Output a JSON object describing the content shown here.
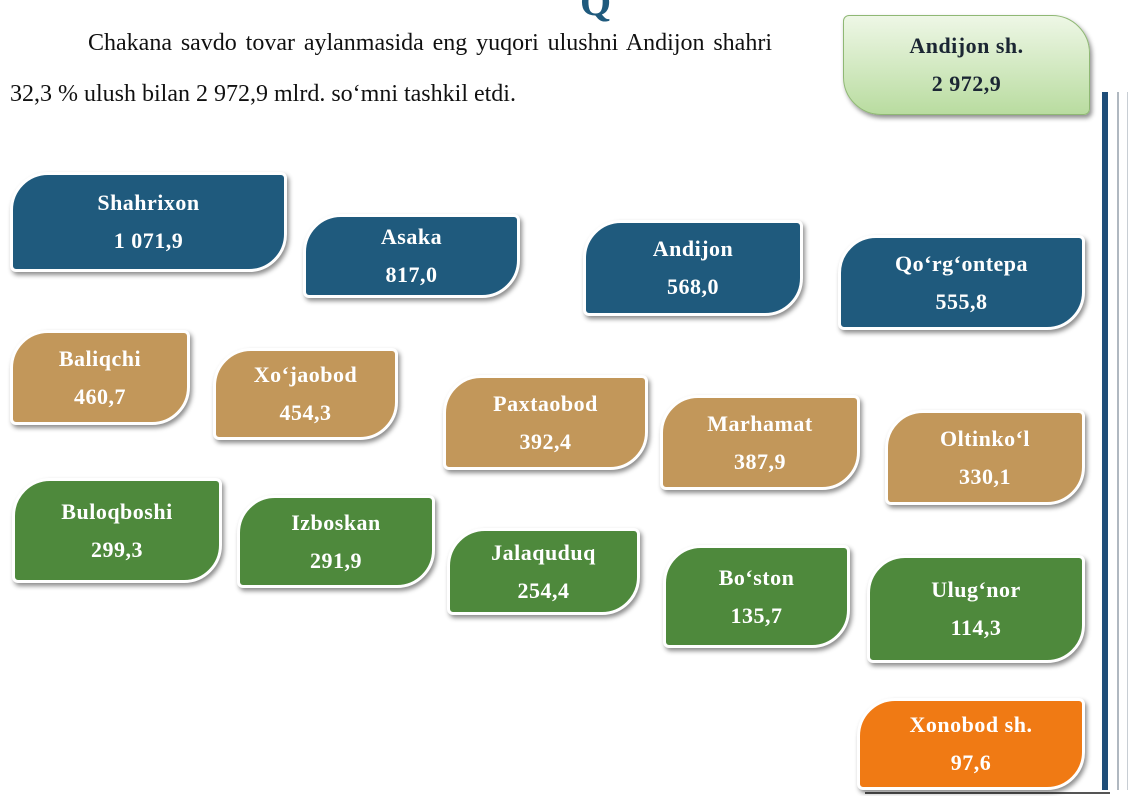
{
  "header": {
    "partial_title": "Q"
  },
  "paragraph": "Chakana savdo tovar aylanmasida eng yuqori ulushni Andijon shahri 32,3 % ulush bilan 2 972,9 mlrd. so‘mni tashkil etdi.",
  "leader": {
    "name": "Andijon sh.",
    "value": "2 972,9"
  },
  "boxes": [
    {
      "name": "Shahrixon",
      "value": "1 071,9",
      "color": "#1f5a7d"
    },
    {
      "name": "Asaka",
      "value": "817,0",
      "color": "#1f5a7d"
    },
    {
      "name": "Andijon",
      "value": "568,0",
      "color": "#1f5a7d"
    },
    {
      "name": "Qo‘rg‘ontepa",
      "value": "555,8",
      "color": "#1f5a7d"
    },
    {
      "name": "Baliqchi",
      "value": "460,7",
      "color": "#c2975a"
    },
    {
      "name": "Xo‘jaobod",
      "value": "454,3",
      "color": "#c2975a"
    },
    {
      "name": "Paxtaobod",
      "value": "392,4",
      "color": "#c2975a"
    },
    {
      "name": "Marhamat",
      "value": "387,9",
      "color": "#c2975a"
    },
    {
      "name": "Oltinko‘l",
      "value": "330,1",
      "color": "#c2975a"
    },
    {
      "name": "Buloqboshi",
      "value": "299,3",
      "color": "#4e893c"
    },
    {
      "name": "Izboskan",
      "value": "291,9",
      "color": "#4e893c"
    },
    {
      "name": "Jalaquduq",
      "value": "254,4",
      "color": "#4e893c"
    },
    {
      "name": "Bo‘ston",
      "value": "135,7",
      "color": "#4e893c"
    },
    {
      "name": "Ulug‘nor",
      "value": "114,3",
      "color": "#4e893c"
    },
    {
      "name": "Xonobod sh.",
      "value": "97,6",
      "color": "#f07a14"
    }
  ]
}
